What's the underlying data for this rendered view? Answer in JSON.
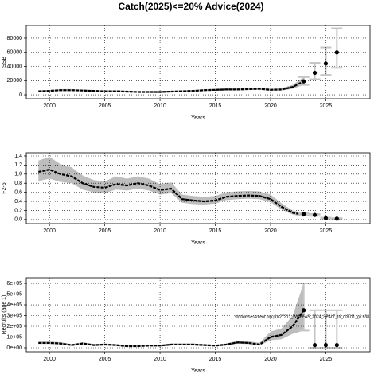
{
  "chart_data": [
    {
      "type": "line",
      "title": "Catch(2025)<=20% Advice(2024)",
      "xlabel": "Years",
      "ylabel": "SSB",
      "x": [
        1999,
        2000,
        2001,
        2002,
        2003,
        2004,
        2005,
        2006,
        2007,
        2008,
        2009,
        2010,
        2011,
        2012,
        2013,
        2014,
        2015,
        2016,
        2017,
        2018,
        2019,
        2020,
        2021,
        2022,
        2023
      ],
      "values": [
        5000,
        5500,
        6500,
        6500,
        6000,
        5500,
        5000,
        5000,
        4500,
        4000,
        4000,
        4000,
        4500,
        5000,
        5500,
        6500,
        7000,
        7500,
        7500,
        8000,
        8500,
        7000,
        7500,
        11000,
        19000
      ],
      "ci_low": [
        4000,
        4500,
        5200,
        5300,
        4900,
        4500,
        4100,
        4100,
        3700,
        3300,
        3300,
        3300,
        3700,
        4100,
        4600,
        5400,
        5800,
        6200,
        6200,
        6600,
        7000,
        5700,
        6000,
        8500,
        14000
      ],
      "ci_high": [
        6200,
        6800,
        8000,
        8000,
        7400,
        6800,
        6200,
        6200,
        5600,
        5000,
        5000,
        5000,
        5600,
        6200,
        6700,
        7900,
        8500,
        9100,
        9100,
        9700,
        10300,
        8600,
        9400,
        14000,
        25000
      ],
      "forecast": {
        "x": [
          2023,
          2024,
          2025,
          2026
        ],
        "values": [
          19000,
          31000,
          44000,
          60000
        ],
        "low": [
          14000,
          22000,
          28000,
          38000
        ],
        "high": [
          25000,
          45000,
          67000,
          94000
        ]
      },
      "xlim": [
        1997.9,
        2029
      ],
      "xticks": [
        2000,
        2005,
        2010,
        2015,
        2020,
        2025
      ],
      "ylim": [
        -5600,
        98000
      ],
      "yticks": [
        0,
        20000,
        40000,
        60000,
        80000
      ],
      "grid": true,
      "color": "#000000",
      "band_color": "#bdbdbd",
      "forecast_color": "#c4c4c4"
    },
    {
      "type": "line",
      "xlabel": "Years",
      "ylabel": "F2-5",
      "x": [
        1999,
        2000,
        2001,
        2002,
        2003,
        2004,
        2005,
        2006,
        2007,
        2008,
        2009,
        2010,
        2011,
        2012,
        2013,
        2014,
        2015,
        2016,
        2017,
        2018,
        2019,
        2020,
        2021,
        2022,
        2023
      ],
      "values": [
        1.05,
        1.1,
        1.0,
        0.95,
        0.8,
        0.72,
        0.7,
        0.78,
        0.75,
        0.8,
        0.75,
        0.65,
        0.68,
        0.45,
        0.42,
        0.4,
        0.42,
        0.5,
        0.52,
        0.53,
        0.52,
        0.45,
        0.28,
        0.15,
        0.1
      ],
      "ci_low": [
        0.85,
        0.9,
        0.83,
        0.8,
        0.66,
        0.6,
        0.58,
        0.66,
        0.64,
        0.68,
        0.64,
        0.55,
        0.58,
        0.37,
        0.34,
        0.33,
        0.35,
        0.43,
        0.45,
        0.46,
        0.45,
        0.38,
        0.22,
        0.11,
        0.06
      ],
      "ci_high": [
        1.3,
        1.38,
        1.22,
        1.15,
        0.97,
        0.87,
        0.84,
        0.95,
        0.9,
        0.95,
        0.9,
        0.78,
        0.82,
        0.55,
        0.52,
        0.5,
        0.52,
        0.6,
        0.62,
        0.63,
        0.62,
        0.55,
        0.36,
        0.2,
        0.14
      ],
      "forecast": {
        "x": [
          2023,
          2024,
          2025,
          2026
        ],
        "values": [
          0.12,
          0.1,
          0.03,
          0.02
        ],
        "low": [
          0.1,
          0.08,
          0.02,
          0.01
        ],
        "high": [
          0.14,
          0.12,
          0.04,
          0.03
        ]
      },
      "xlim": [
        1997.9,
        2029
      ],
      "xticks": [
        2000,
        2005,
        2010,
        2015,
        2020,
        2025
      ],
      "ylim": [
        -0.09,
        1.47
      ],
      "yticks": [
        {
          "value": 0,
          "label": "0.0"
        },
        {
          "value": 0.2,
          "label": "0.2"
        },
        {
          "value": 0.4,
          "label": "0.4"
        },
        {
          "value": 0.6,
          "label": "0.6"
        },
        {
          "value": 0.8,
          "label": "0.8"
        },
        {
          "value": 1,
          "label": "1.0"
        },
        {
          "value": 1.2,
          "label": "1.2"
        },
        {
          "value": 1.4,
          "label": "1.4"
        }
      ],
      "grid": true,
      "color": "#000000",
      "band_color": "#bdbdbd",
      "forecast_color": "#c4c4c4"
    },
    {
      "type": "line",
      "xlabel": "Years",
      "ylabel": "Recruits (age 1)",
      "annotation": "stockassessment.org,pbc2721?_WGBFAS_2024_SPALT_tri_r18011_git:e38",
      "x": [
        1999,
        2000,
        2001,
        2002,
        2003,
        2004,
        2005,
        2006,
        2007,
        2008,
        2009,
        2010,
        2011,
        2012,
        2013,
        2014,
        2015,
        2016,
        2017,
        2018,
        2019,
        2020,
        2021,
        2022,
        2023
      ],
      "values": [
        45000,
        45000,
        40000,
        25000,
        40000,
        25000,
        30000,
        25000,
        15000,
        15000,
        20000,
        20000,
        30000,
        30000,
        30000,
        25000,
        20000,
        30000,
        50000,
        45000,
        30000,
        100000,
        120000,
        200000,
        350000
      ],
      "ci_low": [
        35000,
        35000,
        30000,
        18000,
        30000,
        18000,
        22000,
        18000,
        10000,
        10000,
        14000,
        14000,
        22000,
        22000,
        22000,
        18000,
        14000,
        22000,
        38000,
        34000,
        20000,
        70000,
        80000,
        130000,
        160000
      ],
      "ci_high": [
        58000,
        58000,
        52000,
        34000,
        52000,
        34000,
        40000,
        34000,
        22000,
        22000,
        28000,
        28000,
        40000,
        40000,
        40000,
        34000,
        28000,
        40000,
        65000,
        60000,
        45000,
        150000,
        180000,
        300000,
        600000
      ],
      "forecast": {
        "x": [
          2023,
          2024,
          2025,
          2026
        ],
        "values": [
          350000,
          25000,
          25000,
          25000
        ],
        "low": [
          160000,
          0,
          0,
          0
        ],
        "high": [
          600000,
          350000,
          350000,
          350000
        ]
      },
      "xlim": [
        1997.9,
        2029
      ],
      "xticks": [
        2000,
        2005,
        2010,
        2015,
        2020,
        2025
      ],
      "ylim": [
        -37000,
        652000
      ],
      "yticks": [
        {
          "value": 0,
          "label": "0e+00"
        },
        {
          "value": 100000,
          "label": "1e+05"
        },
        {
          "value": 200000,
          "label": "2e+05"
        },
        {
          "value": 300000,
          "label": "3e+05"
        },
        {
          "value": 400000,
          "label": "4e+05"
        },
        {
          "value": 500000,
          "label": "5e+05"
        },
        {
          "value": 600000,
          "label": "6e+05"
        }
      ],
      "grid": true,
      "color": "#000000",
      "band_color": "#bdbdbd",
      "forecast_color": "#c4c4c4"
    }
  ]
}
